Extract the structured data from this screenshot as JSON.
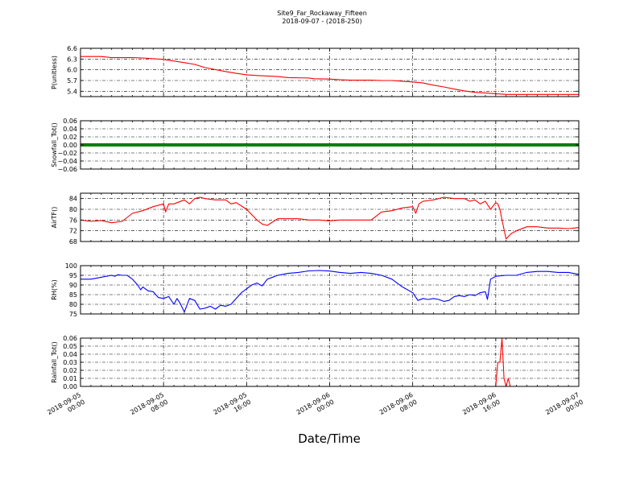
{
  "title": "Site9_Far_Rockaway_Fifteen",
  "subtitle": "2018-09-07 - (2018-250)",
  "xlabel": "Date/Time",
  "x_tick_labels": [
    [
      "2018-09-05",
      "00:00"
    ],
    [
      "2018-09-05",
      "08:00"
    ],
    [
      "2018-09-05",
      "16:00"
    ],
    [
      "2018-09-06",
      "00:00"
    ],
    [
      "2018-09-06",
      "08:00"
    ],
    [
      "2018-09-06",
      "16:00"
    ],
    [
      "2018-09-07",
      "00:00"
    ]
  ],
  "chart_data": [
    {
      "type": "line",
      "ylabel": "P(unitless)",
      "color": "#ff0000",
      "grid": true,
      "xlim_hours": [
        0,
        48
      ],
      "ylim": [
        5.25,
        6.6
      ],
      "yticks": [
        5.4,
        5.7,
        6.0,
        6.3,
        6.6
      ],
      "ytick_labels": [
        "5.4",
        "5.7",
        "6.0",
        "6.3",
        "6.6"
      ],
      "series": [
        {
          "x": [
            0,
            2,
            3,
            4,
            5,
            6,
            8,
            10,
            11,
            12,
            14,
            15,
            16,
            17,
            19,
            20,
            22,
            22.5,
            24,
            25,
            26,
            28,
            29,
            30,
            31,
            32,
            33,
            34,
            35,
            36,
            37,
            38,
            39,
            40,
            41,
            42,
            48
          ],
          "y": [
            6.37,
            6.37,
            6.34,
            6.34,
            6.34,
            6.33,
            6.29,
            6.2,
            6.15,
            6.06,
            5.95,
            5.9,
            5.86,
            5.84,
            5.81,
            5.78,
            5.77,
            5.75,
            5.74,
            5.72,
            5.71,
            5.71,
            5.7,
            5.7,
            5.68,
            5.66,
            5.63,
            5.57,
            5.52,
            5.46,
            5.41,
            5.37,
            5.35,
            5.33,
            5.31,
            5.31,
            5.31
          ]
        }
      ]
    },
    {
      "type": "line",
      "ylabel": "Snowfall_Tot()",
      "color": "#008000",
      "grid": true,
      "xlim_hours": [
        0,
        48
      ],
      "ylim": [
        -0.06,
        0.06
      ],
      "yticks": [
        -0.06,
        -0.04,
        -0.02,
        0.0,
        0.02,
        0.04,
        0.06
      ],
      "ytick_labels": [
        "−0.06",
        "−0.04",
        "−0.02",
        "0.00",
        "0.02",
        "0.04",
        "0.06"
      ],
      "series": [
        {
          "x": [
            0,
            48
          ],
          "y": [
            0,
            0
          ]
        }
      ]
    },
    {
      "type": "line",
      "ylabel": "AirTF()",
      "color": "#ff0000",
      "grid": true,
      "xlim_hours": [
        0,
        48
      ],
      "ylim": [
        68,
        86
      ],
      "yticks": [
        68,
        72,
        76,
        80,
        84
      ],
      "ytick_labels": [
        "68",
        "72",
        "76",
        "80",
        "84"
      ],
      "series": [
        {
          "x": [
            0,
            1,
            2,
            3,
            4,
            5,
            6,
            7,
            8,
            8.2,
            8.5,
            9,
            10,
            10.5,
            11,
            11.5,
            12,
            13,
            14,
            14.5,
            15,
            16,
            16.5,
            17,
            17.5,
            18,
            19,
            20,
            21,
            22,
            23,
            24,
            25,
            26,
            27,
            28,
            29,
            30,
            31,
            32,
            32.3,
            32.6,
            33,
            34,
            35,
            36,
            37,
            37.5,
            38,
            38.5,
            39,
            39.5,
            40,
            40.2,
            40.4,
            40.6,
            41,
            41.5,
            42,
            43,
            44,
            45,
            46,
            47,
            48
          ],
          "y": [
            76,
            75.5,
            75.8,
            75,
            75.5,
            78.5,
            79.5,
            81,
            82,
            79,
            82,
            82,
            83.5,
            82,
            84,
            84.5,
            84,
            83.5,
            83.5,
            82,
            82.5,
            80,
            78,
            76,
            74.5,
            74,
            76.5,
            76.5,
            76.5,
            76,
            76,
            75.7,
            76,
            76,
            76,
            76,
            79,
            79.5,
            80.5,
            81,
            78.5,
            82,
            83,
            83.5,
            84.5,
            84,
            84,
            83,
            83.5,
            82,
            83,
            80,
            82.5,
            82,
            80,
            76,
            69,
            71,
            72,
            73.5,
            73.5,
            73,
            73,
            72.8,
            73.2
          ]
        }
      ]
    },
    {
      "type": "line",
      "ylabel": "RH(%)",
      "color": "#0000ff",
      "grid": true,
      "xlim_hours": [
        0,
        48
      ],
      "ylim": [
        75,
        100
      ],
      "yticks": [
        75,
        80,
        85,
        90,
        95,
        100
      ],
      "ytick_labels": [
        "75",
        "80",
        "85",
        "90",
        "95",
        "100"
      ],
      "series": [
        {
          "x": [
            0,
            1,
            2,
            3,
            3.3,
            3.6,
            4,
            4.5,
            5,
            5.5,
            5.8,
            6,
            6.5,
            7,
            7.5,
            8,
            8.5,
            9,
            9.3,
            9.6,
            10,
            10.5,
            11,
            11.5,
            12,
            12.5,
            13,
            13.5,
            14,
            14.5,
            15,
            15.5,
            16,
            16.5,
            17,
            17.5,
            18,
            19,
            20,
            21,
            22,
            23,
            24,
            25,
            26,
            27,
            28,
            29,
            30,
            31,
            32,
            32.5,
            33,
            33.5,
            34,
            34.5,
            35,
            35.5,
            36,
            36.5,
            37,
            37.5,
            38,
            38.5,
            39,
            39.2,
            39.5,
            40,
            41,
            42,
            43,
            44,
            45,
            46,
            47,
            48
          ],
          "y": [
            93,
            93,
            94,
            95,
            94.5,
            95.3,
            95,
            95,
            93,
            90,
            87.5,
            89,
            87,
            86.5,
            83.5,
            83,
            84,
            80,
            83,
            80.5,
            76,
            83,
            82,
            77.5,
            78,
            79,
            77.5,
            79.5,
            79,
            80,
            83,
            86,
            88,
            90,
            91,
            89.5,
            93,
            95,
            96,
            96.5,
            97.3,
            97.5,
            97.2,
            96.5,
            96,
            96.5,
            96,
            95,
            93,
            89,
            86,
            82,
            83,
            82.5,
            83,
            82.5,
            81.5,
            82,
            84,
            84.5,
            84,
            85,
            84.5,
            86,
            86.5,
            82.5,
            93,
            94.5,
            95,
            95,
            96.5,
            97,
            97,
            96.5,
            96.5,
            95.5
          ]
        }
      ]
    },
    {
      "type": "line",
      "ylabel": "Rainfall_Tot()",
      "color": "#ff0000",
      "grid": true,
      "xlim_hours": [
        0,
        48
      ],
      "ylim": [
        0,
        0.06
      ],
      "yticks": [
        0,
        0.01,
        0.02,
        0.03,
        0.04,
        0.05,
        0.06
      ],
      "ytick_labels": [
        "0.00",
        "0.01",
        "0.02",
        "0.03",
        "0.04",
        "0.05",
        "0.06"
      ],
      "series": [
        {
          "x": [
            0,
            40,
            40.2,
            40.4,
            40.6,
            40.8,
            41.0,
            41.2,
            41.4,
            41.6,
            41.8,
            48
          ],
          "y": [
            0,
            0,
            0.03,
            0.03,
            0.06,
            0.01,
            0,
            0.01,
            0,
            0,
            0,
            0
          ]
        }
      ]
    }
  ]
}
